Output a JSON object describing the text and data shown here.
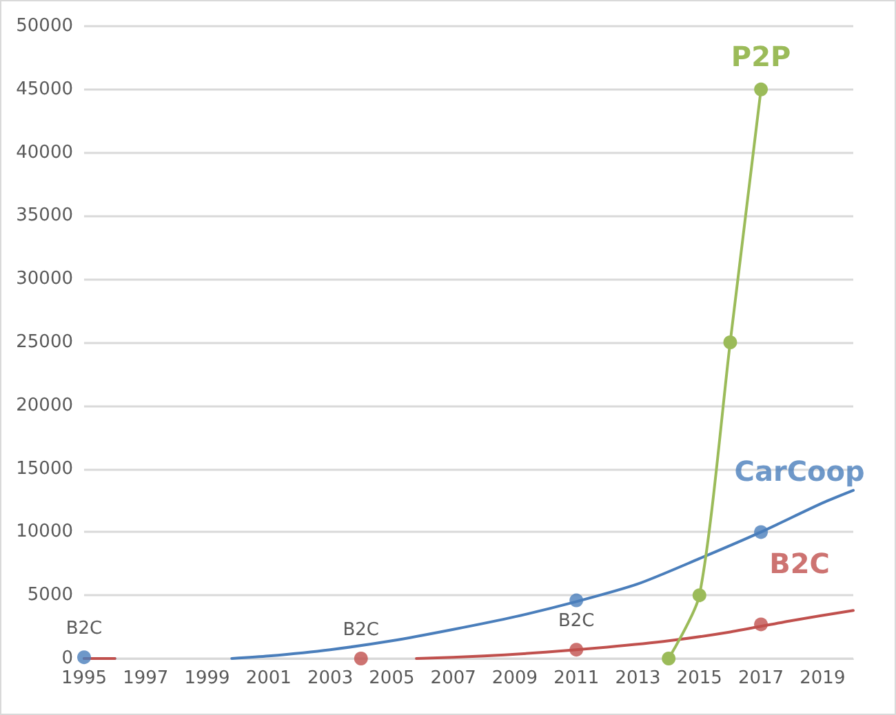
{
  "chart_data": {
    "type": "line",
    "xlim": [
      1995,
      2020
    ],
    "xticks": [
      1995,
      1997,
      1999,
      2001,
      2003,
      2005,
      2007,
      2009,
      2011,
      2013,
      2015,
      2017,
      2019
    ],
    "ylim": [
      0,
      50000
    ],
    "yticks": [
      0,
      5000,
      10000,
      15000,
      20000,
      25000,
      30000,
      35000,
      40000,
      45000,
      50000
    ],
    "grid": "y",
    "legend": false,
    "line_style": "solid",
    "series": [
      {
        "type": "line",
        "color": "#4a7ebb",
        "marker": "none",
        "x": [
          1995,
          1996,
          null,
          1999.8,
          2001,
          2003,
          2005,
          2007,
          2009,
          2011,
          2013,
          2015,
          2017,
          2019,
          2020
        ],
        "values": [
          0,
          0,
          null,
          0,
          200,
          700,
          1400,
          2300,
          3300,
          4500,
          5900,
          7900,
          10000,
          12300,
          13300
        ]
      },
      {
        "type": "line",
        "color": "#c0504d",
        "marker": "none",
        "x": [
          1995,
          1996,
          null,
          2005.8,
          2008,
          2010,
          2012,
          2014,
          2016,
          2018,
          2020
        ],
        "values": [
          0,
          0,
          null,
          0,
          200,
          500,
          900,
          1400,
          2100,
          3000,
          3800
        ]
      },
      {
        "type": "scatter",
        "name": "CarCoop",
        "color": "#4a7ebb",
        "marker": "circle",
        "x": [
          1995,
          2011,
          2017
        ],
        "values": [
          100,
          4600,
          10000
        ]
      },
      {
        "type": "scatter",
        "name": "B2C",
        "color": "#c0504d",
        "marker": "circle",
        "x": [
          2004,
          2011,
          2017
        ],
        "values": [
          0,
          700,
          2700
        ]
      },
      {
        "type": "line",
        "name": "P2P",
        "color": "#9bbb59",
        "marker": "circle",
        "x": [
          2014,
          2015,
          2016,
          2017
        ],
        "values": [
          0,
          5000,
          25000,
          45000
        ]
      }
    ],
    "annotations": [
      {
        "text": "B2C",
        "x": 1995,
        "y": 100
      },
      {
        "text": "B2C",
        "x": 2004,
        "y": 0
      },
      {
        "text": "B2C",
        "x": 2011,
        "y": 700
      }
    ]
  }
}
